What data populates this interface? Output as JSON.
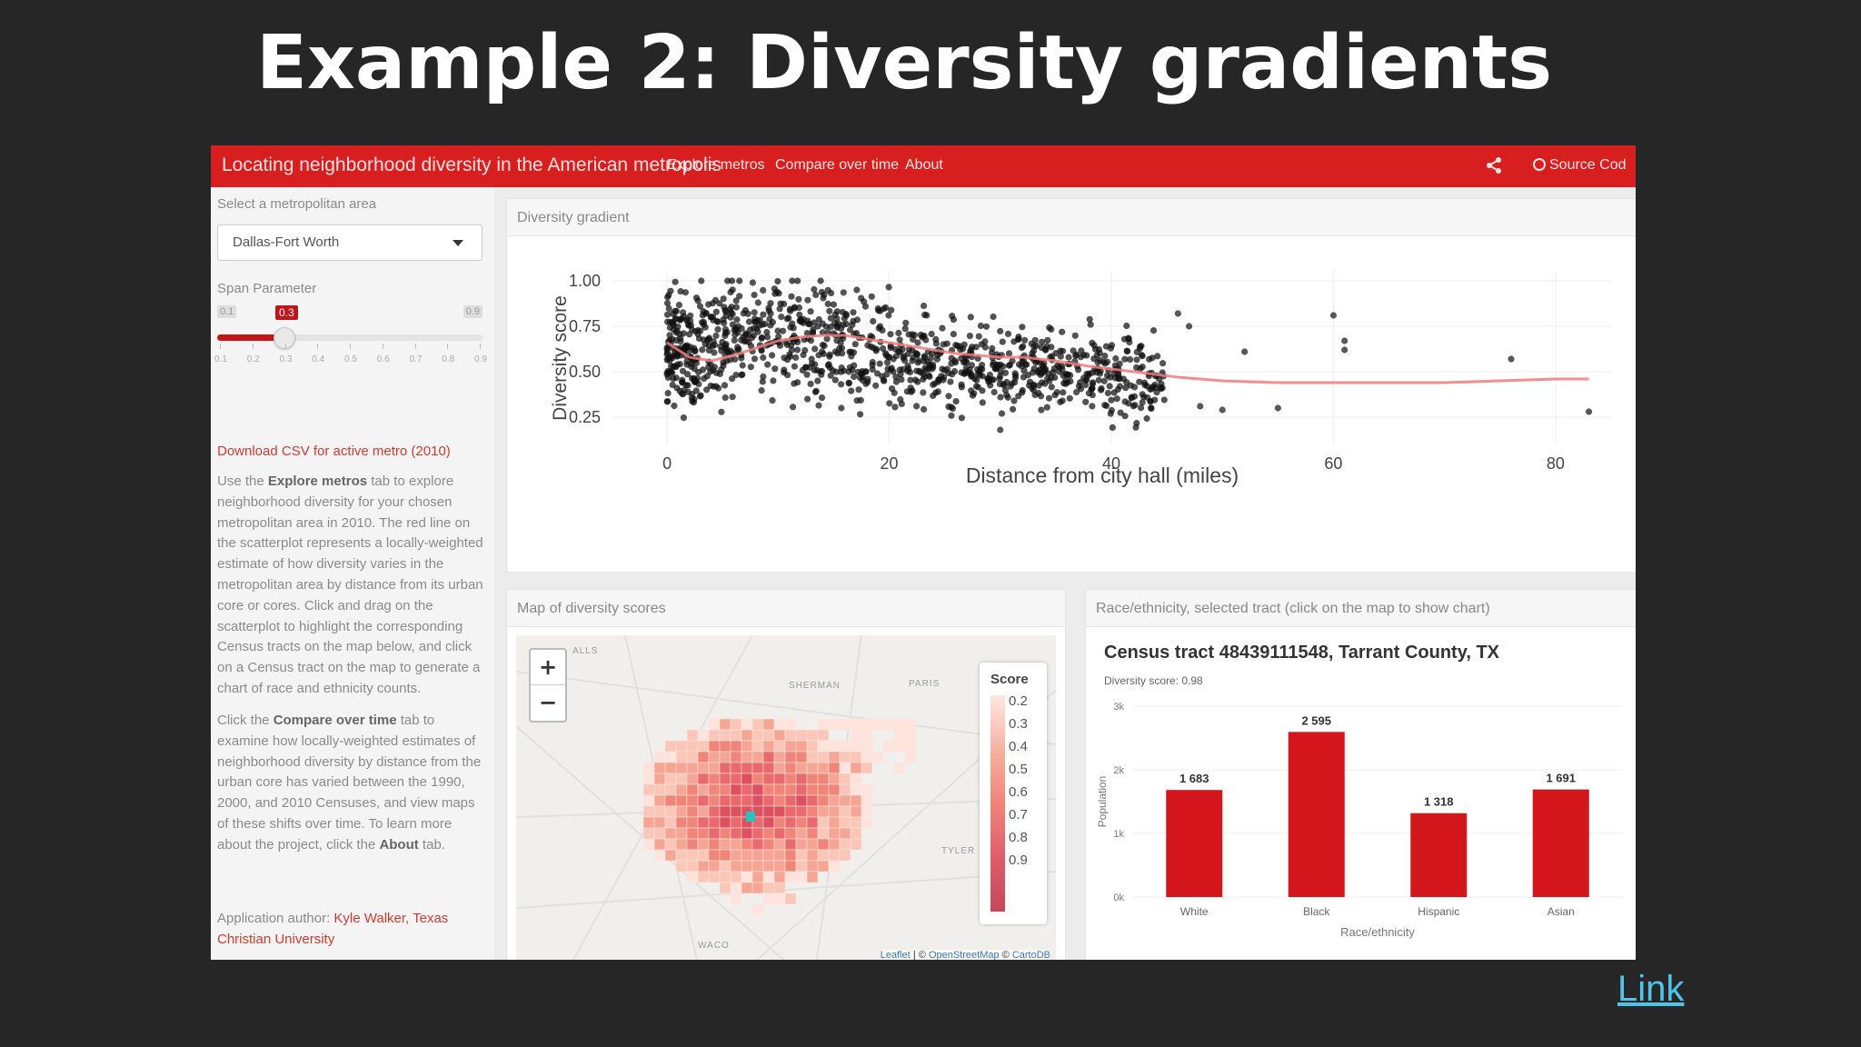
{
  "slide": {
    "title": "Example 2: Diversity gradients",
    "link_label": "Link"
  },
  "navbar": {
    "brand": "Locating neighborhood diversity in the American metropolis",
    "items": [
      "Explore metros",
      "Compare over time",
      "About"
    ],
    "source_label": "Source Cod",
    "icons": [
      "share-icon",
      "github-icon"
    ],
    "color": "#d81f1f"
  },
  "sidebar": {
    "select_label": "Select a metropolitan area",
    "select_value": "Dallas-Fort Worth",
    "span_label": "Span Parameter",
    "slider": {
      "min_label": "0.1",
      "max_label": "0.9",
      "value_label": "0.3",
      "value": 0.3,
      "min": 0.1,
      "max": 0.9,
      "tick_labels": [
        "0.1",
        "0.2",
        "0.3",
        "0.4",
        "0.5",
        "0.6",
        "0.7",
        "0.8",
        "0.9"
      ]
    },
    "download_link": "Download CSV for active metro (2010)",
    "para1": {
      "before": "Use the ",
      "bold": "Explore metros",
      "after": " tab to explore neighborhood diversity for your chosen metropolitan area in 2010. The red line on the scatterplot represents a locally-weighted estimate of how diversity varies in the metropolitan area by distance from its urban core or cores. Click and drag on the scatterplot to highlight the corresponding Census tracts on the map below, and click on a Census tract on the map to generate a chart of race and ethnicity counts."
    },
    "para2": {
      "before": "Click the ",
      "bold": "Compare over time",
      "middle": " tab to examine how locally-weighted estimates of neighborhood diversity by distance from the urban core has varied between the 1990, 2000, and 2010 Censuses, and view maps of these shifts over time. To learn more about the project, click the ",
      "bold2": "About",
      "after": " tab."
    },
    "author_prefix": "Application author: ",
    "author_name": "Kyle Walker, Texas Christian University"
  },
  "scatter_panel": {
    "title": "Diversity gradient"
  },
  "map_panel": {
    "title": "Map of diversity scores",
    "zoom_in": "+",
    "zoom_out": "−",
    "legend_title": "Score",
    "legend_labels": [
      "0.2",
      "0.3",
      "0.4",
      "0.5",
      "0.6",
      "0.7",
      "0.8",
      "0.9"
    ],
    "place_labels": [
      "SHERMAN",
      "PARIS",
      "TYLER",
      "WACO",
      "ALLS"
    ],
    "attribution": {
      "leaflet": "Leaflet",
      "sep": " | © ",
      "osm": "OpenStreetMap",
      "sep2": " © ",
      "carto": "CartoDB"
    },
    "selected_color": "#22c3c3"
  },
  "bar_panel": {
    "title": "Race/ethnicity, selected tract (click on the map to show chart)",
    "tract_title": "Census tract 48439111548, Tarrant County, TX",
    "tract_sub": "Diversity score: 0.98"
  },
  "chart_data": [
    {
      "type": "scatter",
      "title": "",
      "xlabel": "Distance from city hall (miles)",
      "ylabel": "Diversity score",
      "xlim": [
        -5,
        85
      ],
      "ylim": [
        0.1,
        1.05
      ],
      "xticks": [
        0,
        20,
        40,
        60,
        80
      ],
      "yticks": [
        0.25,
        0.5,
        0.75,
        1.0
      ],
      "ytick_labels": [
        "0.25",
        "0.50",
        "0.75",
        "1.00"
      ],
      "grid": true,
      "point_color": "#111111",
      "trend_color": "#f07a7a",
      "trend": {
        "x": [
          0,
          2,
          4,
          6,
          8,
          10,
          12,
          14,
          16,
          18,
          20,
          22,
          24,
          26,
          28,
          30,
          32,
          35,
          38,
          42,
          46,
          50,
          55,
          60,
          65,
          70,
          75,
          80,
          83
        ],
        "y": [
          0.66,
          0.58,
          0.56,
          0.59,
          0.63,
          0.67,
          0.69,
          0.7,
          0.7,
          0.68,
          0.66,
          0.64,
          0.62,
          0.6,
          0.59,
          0.58,
          0.58,
          0.56,
          0.53,
          0.5,
          0.47,
          0.45,
          0.44,
          0.44,
          0.44,
          0.44,
          0.45,
          0.46,
          0.46
        ]
      },
      "outliers": {
        "x": [
          46,
          47,
          52,
          60,
          61,
          61,
          76,
          83,
          50,
          55,
          30,
          48
        ],
        "y": [
          0.82,
          0.75,
          0.61,
          0.81,
          0.67,
          0.62,
          0.57,
          0.28,
          0.29,
          0.3,
          0.18,
          0.31
        ]
      },
      "generated_cloud": {
        "count": 1100,
        "x_range": [
          0,
          45
        ],
        "y_range": [
          0.18,
          1.0
        ]
      }
    },
    {
      "type": "bar",
      "title": "Census tract 48439111548, Tarrant County, TX",
      "xlabel": "Race/ethnicity",
      "ylabel": "Population",
      "categories": [
        "White",
        "Black",
        "Hispanic",
        "Asian"
      ],
      "values": [
        1683,
        2595,
        1318,
        1691
      ],
      "value_labels": [
        "1 683",
        "2 595",
        "1 318",
        "1 691"
      ],
      "ylim": [
        0,
        3000
      ],
      "yticks": [
        0,
        1000,
        2000,
        3000
      ],
      "ytick_labels": [
        "0k",
        "1k",
        "2k",
        "3k"
      ],
      "bar_color": "#d4161d"
    }
  ]
}
